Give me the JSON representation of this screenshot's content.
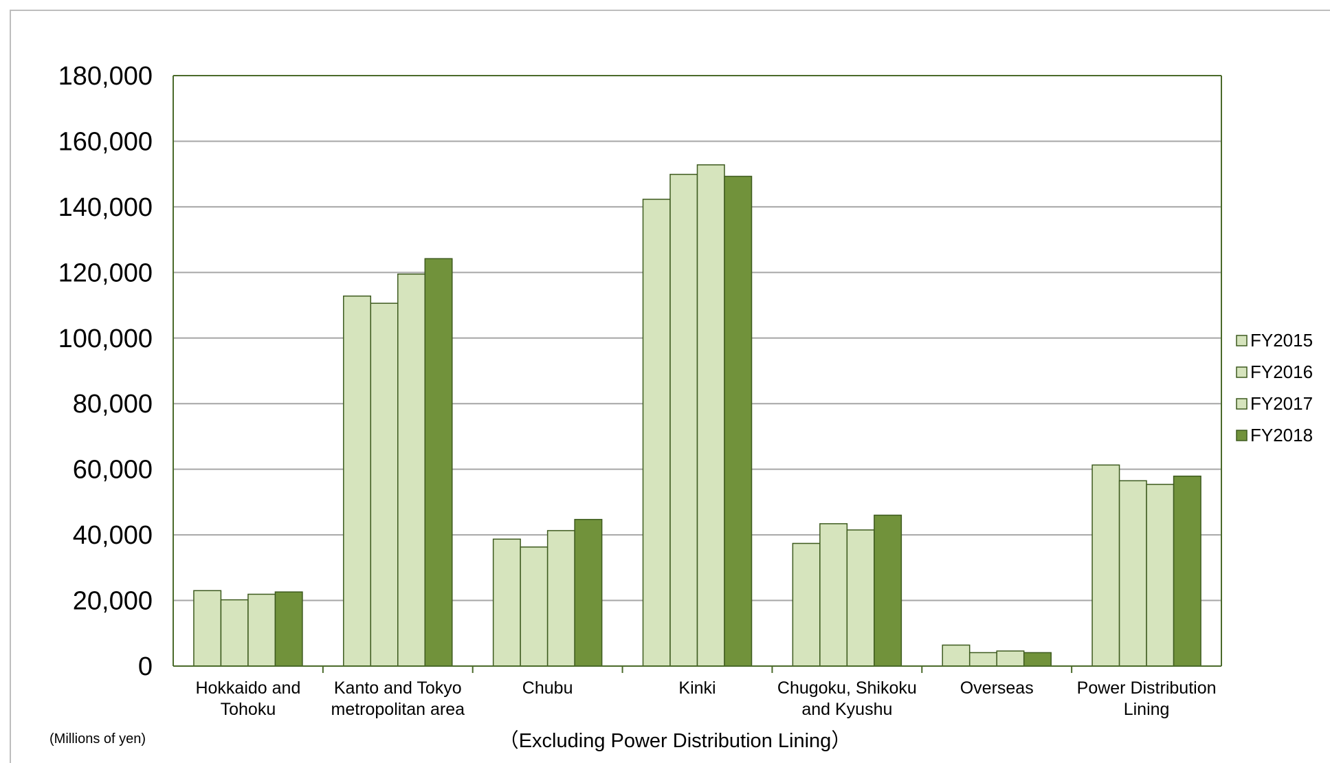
{
  "chart_data": {
    "type": "bar",
    "title": "",
    "units_label": "(Millions of yen)",
    "note": "（Excluding Power Distribution Lining）",
    "ylim": [
      0,
      180000
    ],
    "yticks": [
      0,
      20000,
      40000,
      60000,
      80000,
      100000,
      120000,
      140000,
      160000,
      180000
    ],
    "ytick_labels": [
      "0",
      "20,000",
      "40,000",
      "60,000",
      "80,000",
      "100,000",
      "120,000",
      "140,000",
      "160,000",
      "180,000"
    ],
    "grid": true,
    "legend_position": "right",
    "categories": [
      [
        "Hokkaido and",
        "Tohoku"
      ],
      [
        "Kanto and Tokyo",
        "metropolitan area"
      ],
      [
        "Chubu"
      ],
      [
        "Kinki"
      ],
      [
        "Chugoku, Shikoku",
        "and Kyushu"
      ],
      [
        "Overseas"
      ],
      [
        "Power Distribution",
        "Lining"
      ]
    ],
    "series": [
      {
        "name": "FY2015",
        "color": "#d6e4bd",
        "values": [
          23000,
          112800,
          38700,
          142300,
          37400,
          6400,
          61300
        ]
      },
      {
        "name": "FY2016",
        "color": "#d6e4bd",
        "values": [
          20200,
          110600,
          36300,
          149900,
          43400,
          4100,
          56500
        ]
      },
      {
        "name": "FY2017",
        "color": "#d6e4bd",
        "values": [
          21900,
          119500,
          41300,
          152800,
          41500,
          4600,
          55400
        ]
      },
      {
        "name": "FY2018",
        "color": "#71923b",
        "values": [
          22600,
          124200,
          44700,
          149300,
          46000,
          4100,
          57900
        ]
      }
    ],
    "bar_stroke": "#3d5a1e",
    "axis_color": "#4a6a2a",
    "grid_color": "#a6a6a6"
  }
}
